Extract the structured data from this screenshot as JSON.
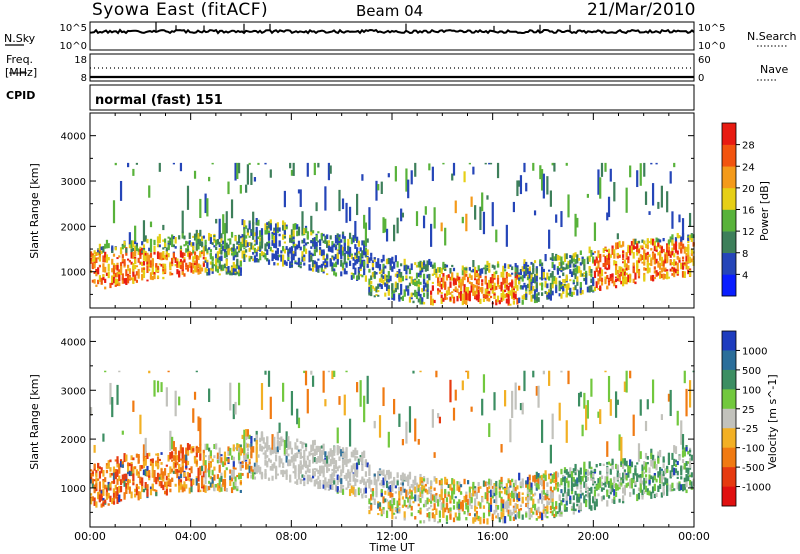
{
  "header": {
    "title": "Syowa East (fitACF)",
    "beam": "Beam 04",
    "date": "21/Mar/2010"
  },
  "noise_panel": {
    "left_label": "N.Sky",
    "right_label": "N.Search",
    "left_ticks": [
      "10^5",
      "10^0"
    ],
    "right_ticks": [
      "10^5",
      "10^0"
    ]
  },
  "freq_panel": {
    "left_label_line1": "Freq.",
    "left_label_line2": "[MHz]",
    "left_ticks": [
      "18",
      "8"
    ],
    "right_label": "Nave",
    "right_ticks": [
      "60",
      "0"
    ]
  },
  "cpid": {
    "label": "CPID",
    "value": "normal (fast) 151"
  },
  "chart_data": [
    {
      "type": "heatmap",
      "name": "power",
      "ylabel": "Slant Range [km]",
      "yticks": [
        "1000",
        "2000",
        "3000",
        "4000"
      ],
      "ylim": [
        200,
        4500
      ],
      "colorbar_label": "Power [dB]",
      "colorbar_ticks": [
        "4",
        "8",
        "12",
        "16",
        "20",
        "24",
        "28"
      ],
      "colorbar_colors": [
        "#0a1eff",
        "#2545b8",
        "#3d7f5a",
        "#58b23a",
        "#e6cf16",
        "#f49a1a",
        "#f2540f",
        "#e81b12"
      ],
      "xtick_labels": [
        "00:00",
        "04:00",
        "08:00",
        "12:00",
        "16:00",
        "20:00",
        "00:00"
      ],
      "xlim_hours": [
        0,
        24
      ],
      "xlabel": "Time UT"
    },
    {
      "type": "heatmap",
      "name": "velocity",
      "ylabel": "Slant Range [km]",
      "yticks": [
        "1000",
        "2000",
        "3000",
        "4000"
      ],
      "ylim": [
        200,
        4500
      ],
      "colorbar_label": "Velocity [m s^-1]",
      "colorbar_ticks": [
        "1000",
        "500",
        "100",
        "25",
        "-25",
        "-100",
        "-500",
        "-1000"
      ],
      "colorbar_colors": [
        "#1e3cbe",
        "#2b6e9a",
        "#3c8e62",
        "#72c83e",
        "#c2c2bc",
        "#f2b024",
        "#f07a12",
        "#e63a10",
        "#e01010"
      ],
      "xtick_labels": [
        "00:00",
        "04:00",
        "08:00",
        "12:00",
        "16:00",
        "20:00",
        "00:00"
      ],
      "xlim_hours": [
        0,
        24
      ],
      "xlabel": "Time UT"
    }
  ]
}
